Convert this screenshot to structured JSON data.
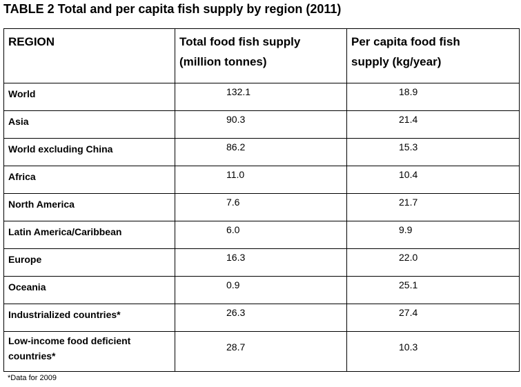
{
  "document": {
    "title": "TABLE 2 Total and per capita fish supply by region (2011)",
    "footnote": "*Data for 2009"
  },
  "table": {
    "headers": {
      "region": "REGION",
      "total_line1": "Total food fish supply",
      "total_line2": "(million tonnes)",
      "per_capita_line1": "Per capita food fish",
      "per_capita_line2": "supply (kg/year)"
    },
    "rows": [
      {
        "region": "World",
        "total": "132.1",
        "per_capita": "18.9"
      },
      {
        "region": "Asia",
        "total": "90.3",
        "per_capita": "21.4"
      },
      {
        "region": "World excluding China",
        "total": "86.2",
        "per_capita": "15.3"
      },
      {
        "region": "Africa",
        "total": "11.0",
        "per_capita": "10.4"
      },
      {
        "region": "North America",
        "total": "7.6",
        "per_capita": "21.7"
      },
      {
        "region": "Latin America/Caribbean",
        "total": "6.0",
        "per_capita": "9.9"
      },
      {
        "region": "Europe",
        "total": "16.3",
        "per_capita": "22.0"
      },
      {
        "region": "Oceania",
        "total": "0.9",
        "per_capita": "25.1"
      },
      {
        "region": "Industrialized countries*",
        "total": "26.3",
        "per_capita": "27.4"
      },
      {
        "region_line1": "Low-income food deficient",
        "region_line2": "countries*",
        "total": "28.7",
        "per_capita": "10.3"
      }
    ]
  }
}
